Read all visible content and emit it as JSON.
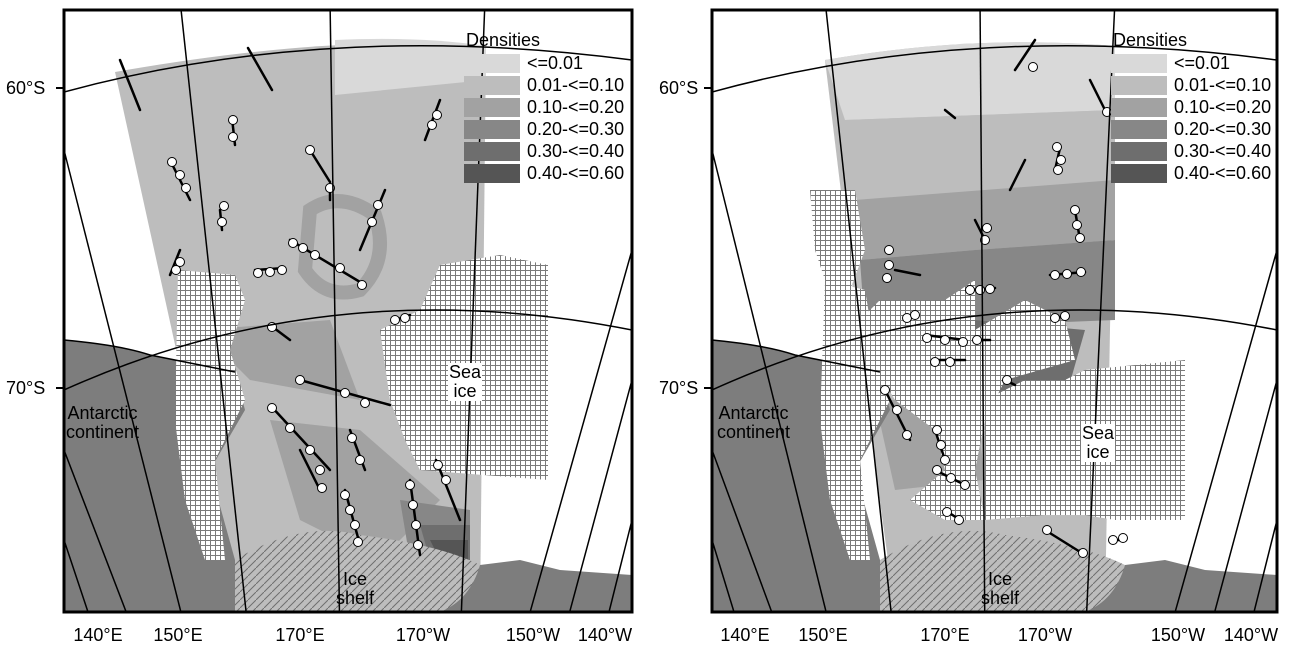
{
  "legend": {
    "title": "Densities",
    "classes": [
      {
        "label": "<=0.01",
        "color": "#d9d9d9"
      },
      {
        "label": "0.01-<=0.10",
        "color": "#bdbdbd"
      },
      {
        "label": "0.10-<=0.20",
        "color": "#a2a2a2"
      },
      {
        "label": "0.20-<=0.30",
        "color": "#878787"
      },
      {
        "label": "0.30-<=0.40",
        "color": "#6e6e6e"
      },
      {
        "label": "0.40-<=0.60",
        "color": "#555555"
      }
    ]
  },
  "latitudes": [
    "60°S",
    "70°S"
  ],
  "longitudes": [
    "140°E",
    "150°E",
    "170°E",
    "170°W",
    "150°W",
    "140°W"
  ],
  "regions": {
    "continent": [
      "Antarctic",
      "continent"
    ],
    "sea_ice": [
      "Sea",
      "ice"
    ],
    "ice_shelf": [
      "Ice",
      "shelf"
    ]
  },
  "colors": {
    "continent": "#7d7d7d",
    "ice_shelf": "#bdbdbd",
    "sea_ice_hatch": "#7a7a7a",
    "track_point": "#ffffff"
  }
}
